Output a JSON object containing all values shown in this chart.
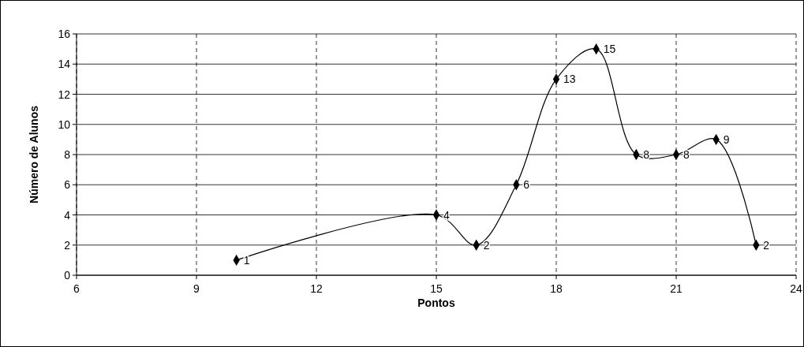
{
  "chart_data": {
    "type": "line",
    "xlabel": "Pontos",
    "ylabel": "Número de Alunos",
    "x": [
      10,
      15,
      16,
      17,
      18,
      19,
      20,
      21,
      22,
      23
    ],
    "series": [
      {
        "color": "#000000",
        "values": [
          1,
          4,
          2,
          6,
          13,
          15,
          8,
          8,
          9,
          2
        ]
      }
    ],
    "xlim": [
      6,
      24
    ],
    "xticks": [
      6,
      9,
      12,
      15,
      18,
      21,
      24
    ],
    "ylim": [
      0,
      16
    ],
    "yticks": [
      0,
      2,
      4,
      6,
      8,
      10,
      12,
      14,
      16
    ],
    "grid": true,
    "marker": "diamond",
    "line_style": "solid",
    "data_labels": true
  }
}
